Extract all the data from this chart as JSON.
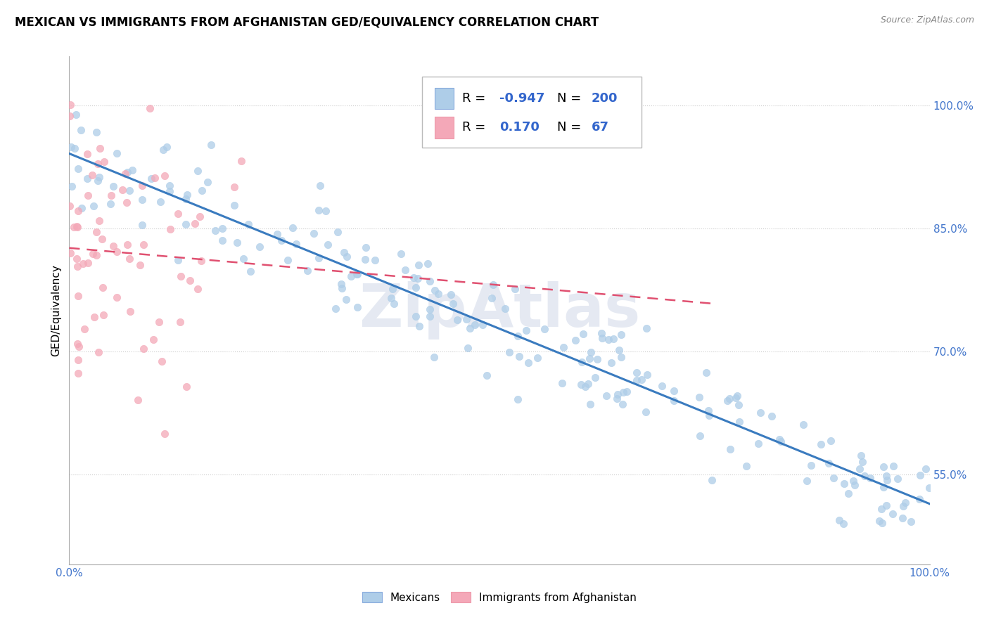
{
  "title": "MEXICAN VS IMMIGRANTS FROM AFGHANISTAN GED/EQUIVALENCY CORRELATION CHART",
  "source": "Source: ZipAtlas.com",
  "ylabel": "GED/Equivalency",
  "xlim": [
    0,
    1
  ],
  "ylim": [
    0.44,
    1.06
  ],
  "yticks": [
    0.55,
    0.7,
    0.85,
    1.0
  ],
  "ytick_labels": [
    "55.0%",
    "70.0%",
    "85.0%",
    "100.0%"
  ],
  "xtick_labels": [
    "0.0%",
    "100.0%"
  ],
  "blue_R": -0.947,
  "blue_N": 200,
  "pink_R": 0.17,
  "pink_N": 67,
  "blue_color": "#aecde8",
  "pink_color": "#f4a8b8",
  "blue_line_color": "#3a7bbf",
  "pink_line_color": "#e05070",
  "watermark": "ZipAtlas",
  "title_fontsize": 12,
  "label_fontsize": 11,
  "tick_fontsize": 11,
  "seed": 12
}
